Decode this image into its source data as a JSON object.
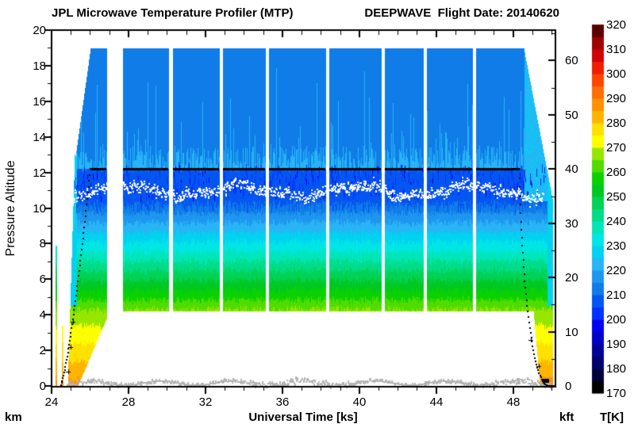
{
  "title": {
    "left": "JPL Microwave Temperature Profiler (MTP)",
    "right": "DEEPWAVE  Flight Date: 20140620"
  },
  "axes": {
    "left": {
      "label": "Pressure Altitude",
      "unit": "km",
      "range": [
        0,
        20
      ],
      "major_ticks": [
        0,
        2,
        4,
        6,
        8,
        10,
        12,
        14,
        16,
        18,
        20
      ],
      "minor_step": 1
    },
    "bottom": {
      "label": "Universal Time [ks]",
      "range": [
        24,
        50.2
      ],
      "major_ticks": [
        24,
        28,
        32,
        36,
        40,
        44,
        48
      ],
      "minor_step": 1
    },
    "right": {
      "unit": "kft",
      "range": [
        0,
        65.6
      ],
      "major_ticks": [
        0,
        10,
        20,
        30,
        40,
        50,
        60
      ],
      "minor_step": 5
    }
  },
  "colorbar": {
    "label": "T[K]",
    "range": [
      170,
      320
    ],
    "segment_step": 5,
    "tick_labels": [
      170,
      180,
      190,
      200,
      210,
      220,
      230,
      240,
      250,
      260,
      270,
      280,
      290,
      300,
      310,
      320
    ],
    "colors": [
      "#000000",
      "#000041",
      "#00006e",
      "#00009b",
      "#0000c8",
      "#0000f5",
      "#0032ff",
      "#0555f0",
      "#0f7ce8",
      "#1e96f0",
      "#28b4f5",
      "#00d2f0",
      "#00e6e6",
      "#00e6b9",
      "#00dc87",
      "#00d255",
      "#00c823",
      "#0ad200",
      "#50dc00",
      "#96e600",
      "#ffff00",
      "#ffe100",
      "#ffb400",
      "#ff9100",
      "#ff6e00",
      "#ff4600",
      "#f01e00",
      "#d20000",
      "#a00000",
      "#5f0000"
    ]
  },
  "chart_data": {
    "type": "heatmap",
    "title": "JPL Microwave Temperature Profiler (MTP)",
    "annotation": "DEEPWAVE  Flight Date: 20140620",
    "xlabel": "Universal Time [ks]",
    "ylabel": "Pressure Altitude",
    "value_label": "Temperature [K]",
    "x_range_ks": [
      24,
      50.2
    ],
    "y_range_km": [
      0,
      20
    ],
    "curtain_top_km": 19.0,
    "curtain_bottom_km": 4.2,
    "level_flight_altitude_km": 12.2,
    "level_flight_ks": [
      26.05,
      48.35
    ],
    "tropopause_altitude_km": 11.0,
    "takeoff_ks": 24.9,
    "landing_ks": 49.85,
    "flight_segments_ks": [
      {
        "t0": 24.87,
        "t1": 26.85,
        "type": "ascent"
      },
      {
        "t0": 27.71,
        "t1": 30.06,
        "type": "level"
      },
      {
        "t0": 30.31,
        "t1": 32.7,
        "type": "level"
      },
      {
        "t0": 32.91,
        "t1": 35.09,
        "type": "level"
      },
      {
        "t0": 35.3,
        "t1": 38.23,
        "type": "level"
      },
      {
        "t0": 38.43,
        "t1": 41.11,
        "type": "level"
      },
      {
        "t0": 41.32,
        "t1": 43.3,
        "type": "level"
      },
      {
        "t0": 43.51,
        "t1": 45.86,
        "type": "level"
      },
      {
        "t0": 46.06,
        "t1": 48.54,
        "type": "level"
      },
      {
        "t0": 48.58,
        "t1": 50.05,
        "type": "descent"
      }
    ],
    "temperature_profile": {
      "T_ref_K": 266,
      "z_ref_km": 4.2,
      "lapse_mid_K_per_km": 9.2,
      "lapse_low_K_per_km": 5.0,
      "tropopause_T_K": 205,
      "stratosphere_T_K": 212,
      "streak_T_K": 222,
      "surface_T_K": 287
    },
    "ground_trace_km": 0.25
  }
}
